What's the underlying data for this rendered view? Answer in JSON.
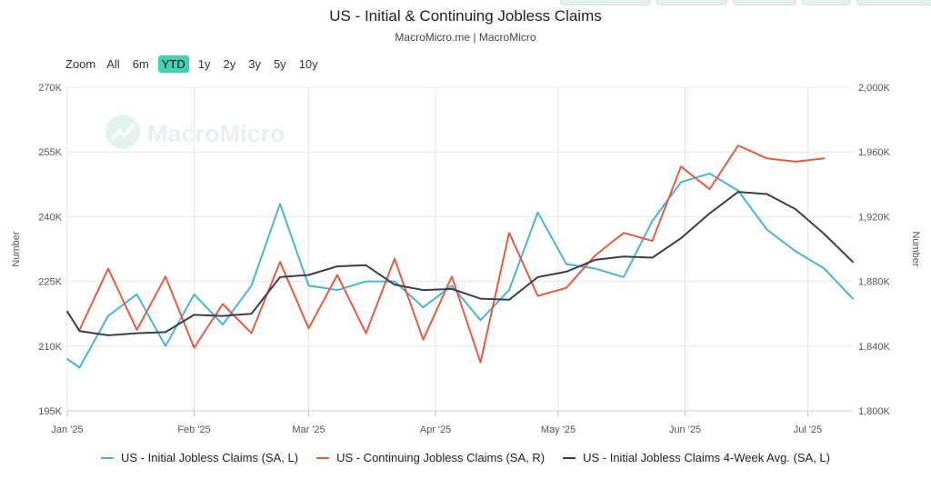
{
  "title": "US - Initial & Continuing Jobless Claims",
  "subtitle": "MacroMicro.me | MacroMicro",
  "watermark": "MacroMicro",
  "range_selector": {
    "label": "Zoom",
    "buttons": [
      "All",
      "6m",
      "YTD",
      "1y",
      "2y",
      "3y",
      "5y",
      "10y"
    ],
    "active": "YTD"
  },
  "colors": {
    "initial": "#4ab3d9",
    "continuing": "#e45c3f",
    "avg": "#3a3d4d",
    "grid": "#e6e6e6",
    "active_button": "#3fd3b2"
  },
  "chart_data": {
    "type": "line",
    "x_ticks": [
      "Jan '25",
      "Feb '25",
      "Mar '25",
      "Apr '25",
      "May '25",
      "Jun '25",
      "Jul '25"
    ],
    "x_tick_dates": [
      "2025-01-01",
      "2025-02-01",
      "2025-03-01",
      "2025-04-01",
      "2025-05-01",
      "2025-06-01",
      "2025-07-01"
    ],
    "x_range": [
      "2025-01-01",
      "2025-07-12"
    ],
    "left_axis": {
      "title": "Number",
      "range": [
        195000,
        270000
      ],
      "ticks": [
        195000,
        210000,
        225000,
        240000,
        255000,
        270000
      ],
      "tick_labels": [
        "195K",
        "210K",
        "225K",
        "240K",
        "255K",
        "270K"
      ]
    },
    "right_axis": {
      "title": "Number",
      "range": [
        1800000,
        2000000
      ],
      "ticks": [
        1800000,
        1840000,
        1880000,
        1920000,
        1960000,
        2000000
      ],
      "tick_labels": [
        "1,800K",
        "1,840K",
        "1,880K",
        "1,920K",
        "1,960K",
        "2,000K"
      ]
    },
    "grid": true,
    "legend_position": "bottom",
    "series": [
      {
        "name": "US - Initial Jobless Claims (SA, L)",
        "axis": "left",
        "x": [
          "2025-01-01",
          "2025-01-04",
          "2025-01-11",
          "2025-01-18",
          "2025-01-25",
          "2025-02-01",
          "2025-02-08",
          "2025-02-15",
          "2025-02-22",
          "2025-03-01",
          "2025-03-08",
          "2025-03-15",
          "2025-03-22",
          "2025-03-29",
          "2025-04-05",
          "2025-04-12",
          "2025-04-19",
          "2025-04-26",
          "2025-05-03",
          "2025-05-10",
          "2025-05-17",
          "2025-05-24",
          "2025-05-31",
          "2025-06-07",
          "2025-06-14",
          "2025-06-21",
          "2025-06-28",
          "2025-07-05",
          "2025-07-12"
        ],
        "values": [
          207000,
          205000,
          217000,
          222000,
          210000,
          222000,
          215000,
          224000,
          243000,
          224000,
          223000,
          225000,
          225000,
          219000,
          224000,
          216000,
          223000,
          241000,
          229000,
          228000,
          226000,
          239000,
          248000,
          250000,
          246000,
          237000,
          232000,
          228000,
          221000
        ]
      },
      {
        "name": "US - Continuing Jobless Claims (SA, R)",
        "axis": "right",
        "x": [
          "2025-01-04",
          "2025-01-11",
          "2025-01-18",
          "2025-01-25",
          "2025-02-01",
          "2025-02-08",
          "2025-02-15",
          "2025-02-22",
          "2025-03-01",
          "2025-03-08",
          "2025-03-15",
          "2025-03-22",
          "2025-03-29",
          "2025-04-05",
          "2025-04-12",
          "2025-04-19",
          "2025-04-26",
          "2025-05-03",
          "2025-05-10",
          "2025-05-17",
          "2025-05-24",
          "2025-05-31",
          "2025-06-07",
          "2025-06-14",
          "2025-06-21",
          "2025-06-28",
          "2025-07-05"
        ],
        "values": [
          1850000,
          1888000,
          1850000,
          1883000,
          1839000,
          1866000,
          1848000,
          1892000,
          1851000,
          1884000,
          1848000,
          1894000,
          1844000,
          1883000,
          1830000,
          1910000,
          1871000,
          1876000,
          1896000,
          1910000,
          1905000,
          1951000,
          1937000,
          1964000,
          1956000,
          1954000,
          1956000
        ]
      },
      {
        "name": "US - Initial Jobless Claims 4-Week Avg. (SA, L)",
        "axis": "left",
        "x": [
          "2025-01-01",
          "2025-01-04",
          "2025-01-11",
          "2025-01-18",
          "2025-01-25",
          "2025-02-01",
          "2025-02-08",
          "2025-02-15",
          "2025-02-22",
          "2025-03-01",
          "2025-03-08",
          "2025-03-15",
          "2025-03-22",
          "2025-03-29",
          "2025-04-05",
          "2025-04-12",
          "2025-04-19",
          "2025-04-26",
          "2025-05-03",
          "2025-05-10",
          "2025-05-17",
          "2025-05-24",
          "2025-05-31",
          "2025-06-07",
          "2025-06-14",
          "2025-06-21",
          "2025-06-28",
          "2025-07-05",
          "2025-07-12"
        ],
        "values": [
          218000,
          213500,
          212500,
          213000,
          213250,
          217250,
          217000,
          217500,
          226000,
          226500,
          228500,
          228750,
          224250,
          223000,
          223250,
          221000,
          220750,
          226000,
          227250,
          230000,
          230750,
          230500,
          235000,
          240750,
          245750,
          245250,
          241750,
          236000,
          229500
        ]
      }
    ]
  }
}
